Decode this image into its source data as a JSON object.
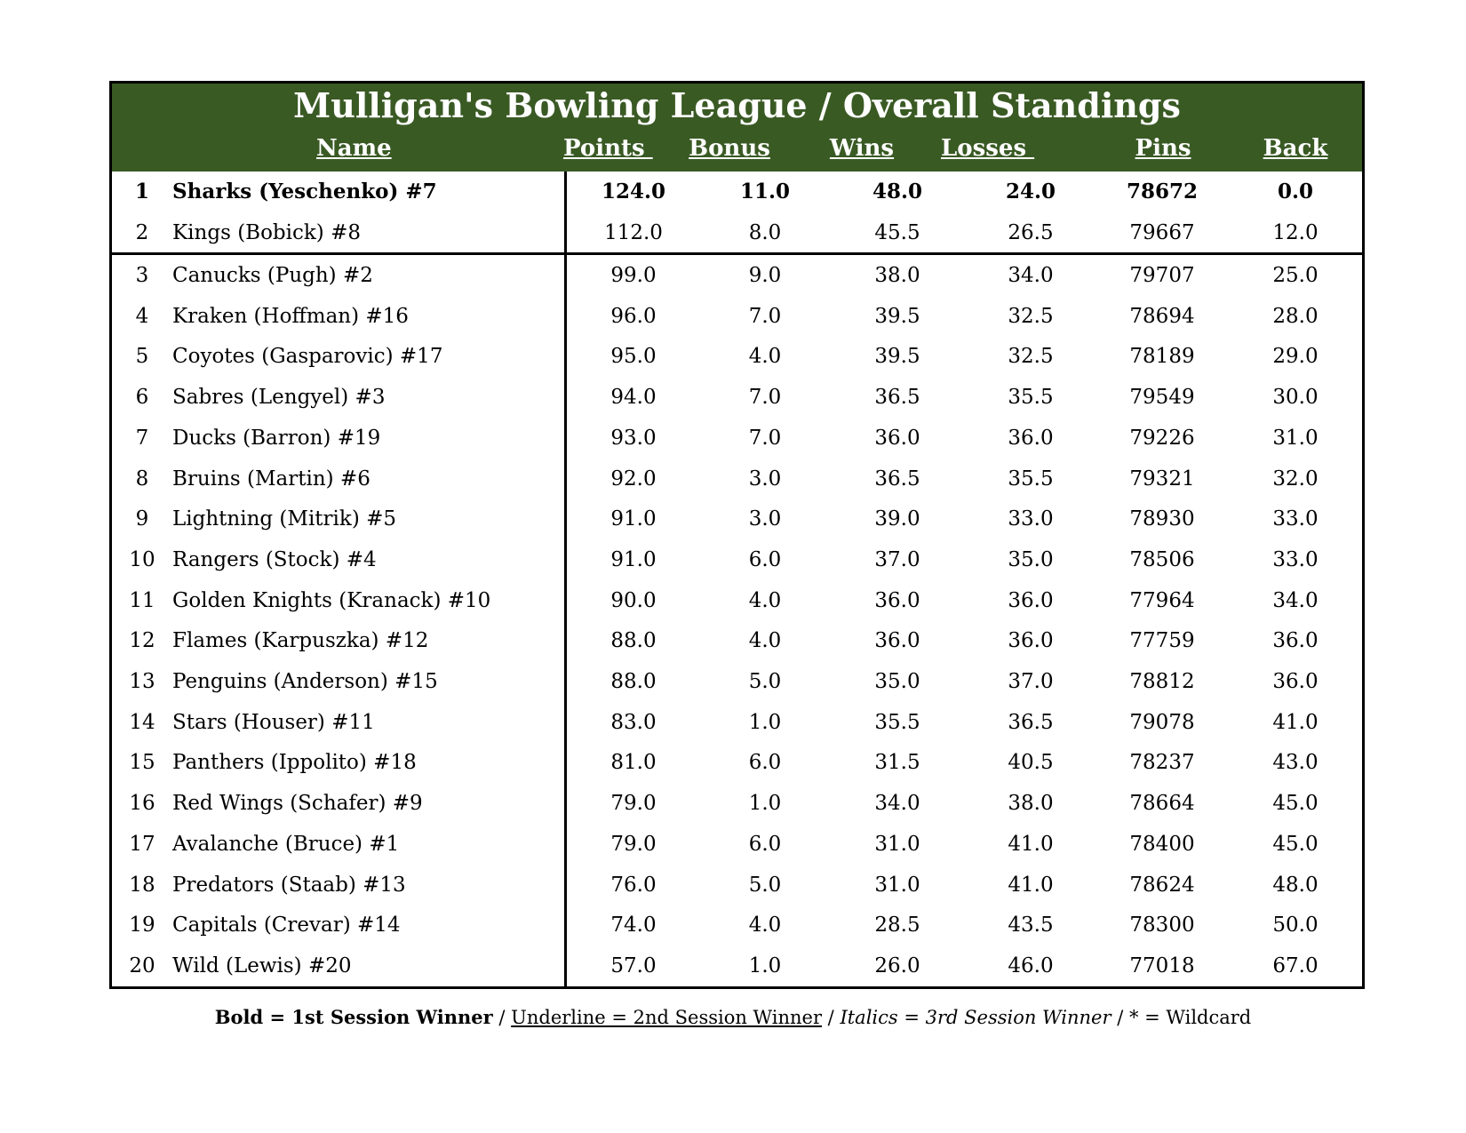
{
  "title": "Mulligan's Bowling League / Overall Standings",
  "colors": {
    "header_bg": "#3a5a24",
    "header_text": "#ffffff"
  },
  "headers": {
    "name": "Name",
    "points": "Points ",
    "bonus": "Bonus",
    "wins": "Wins",
    "losses": "Losses ",
    "pins": "Pins",
    "back": "Back"
  },
  "rows": [
    {
      "rank": "1",
      "name": "Sharks (Yeschenko) #7",
      "points": "124.0",
      "bonus": "11.0",
      "wins": "48.0",
      "losses": "24.0",
      "pins": "78672",
      "back": "0.0",
      "bold": true
    },
    {
      "rank": "2",
      "name": "Kings (Bobick) #8",
      "points": "112.0",
      "bonus": "8.0",
      "wins": "45.5",
      "losses": "26.5",
      "pins": "79667",
      "back": "12.0"
    },
    {
      "rank": "3",
      "name": "Canucks (Pugh) #2",
      "points": "99.0",
      "bonus": "9.0",
      "wins": "38.0",
      "losses": "34.0",
      "pins": "79707",
      "back": "25.0"
    },
    {
      "rank": "4",
      "name": "Kraken (Hoffman) #16",
      "points": "96.0",
      "bonus": "7.0",
      "wins": "39.5",
      "losses": "32.5",
      "pins": "78694",
      "back": "28.0"
    },
    {
      "rank": "5",
      "name": "Coyotes (Gasparovic) #17",
      "points": "95.0",
      "bonus": "4.0",
      "wins": "39.5",
      "losses": "32.5",
      "pins": "78189",
      "back": "29.0"
    },
    {
      "rank": "6",
      "name": "Sabres (Lengyel) #3",
      "points": "94.0",
      "bonus": "7.0",
      "wins": "36.5",
      "losses": "35.5",
      "pins": "79549",
      "back": "30.0"
    },
    {
      "rank": "7",
      "name": "Ducks (Barron) #19",
      "points": "93.0",
      "bonus": "7.0",
      "wins": "36.0",
      "losses": "36.0",
      "pins": "79226",
      "back": "31.0"
    },
    {
      "rank": "8",
      "name": "Bruins (Martin) #6",
      "points": "92.0",
      "bonus": "3.0",
      "wins": "36.5",
      "losses": "35.5",
      "pins": "79321",
      "back": "32.0"
    },
    {
      "rank": "9",
      "name": "Lightning (Mitrik) #5",
      "points": "91.0",
      "bonus": "3.0",
      "wins": "39.0",
      "losses": "33.0",
      "pins": "78930",
      "back": "33.0"
    },
    {
      "rank": "10",
      "name": "Rangers (Stock) #4",
      "points": "91.0",
      "bonus": "6.0",
      "wins": "37.0",
      "losses": "35.0",
      "pins": "78506",
      "back": "33.0"
    },
    {
      "rank": "11",
      "name": "Golden Knights (Kranack) #10",
      "points": "90.0",
      "bonus": "4.0",
      "wins": "36.0",
      "losses": "36.0",
      "pins": "77964",
      "back": "34.0"
    },
    {
      "rank": "12",
      "name": "Flames (Karpuszka) #12",
      "points": "88.0",
      "bonus": "4.0",
      "wins": "36.0",
      "losses": "36.0",
      "pins": "77759",
      "back": "36.0"
    },
    {
      "rank": "13",
      "name": "Penguins (Anderson) #15",
      "points": "88.0",
      "bonus": "5.0",
      "wins": "35.0",
      "losses": "37.0",
      "pins": "78812",
      "back": "36.0"
    },
    {
      "rank": "14",
      "name": "Stars (Houser) #11",
      "points": "83.0",
      "bonus": "1.0",
      "wins": "35.5",
      "losses": "36.5",
      "pins": "79078",
      "back": "41.0"
    },
    {
      "rank": "15",
      "name": "Panthers (Ippolito) #18",
      "points": "81.0",
      "bonus": "6.0",
      "wins": "31.5",
      "losses": "40.5",
      "pins": "78237",
      "back": "43.0"
    },
    {
      "rank": "16",
      "name": "Red Wings (Schafer) #9",
      "points": "79.0",
      "bonus": "1.0",
      "wins": "34.0",
      "losses": "38.0",
      "pins": "78664",
      "back": "45.0"
    },
    {
      "rank": "17",
      "name": "Avalanche (Bruce) #1",
      "points": "79.0",
      "bonus": "6.0",
      "wins": "31.0",
      "losses": "41.0",
      "pins": "78400",
      "back": "45.0"
    },
    {
      "rank": "18",
      "name": "Predators (Staab) #13",
      "points": "76.0",
      "bonus": "5.0",
      "wins": "31.0",
      "losses": "41.0",
      "pins": "78624",
      "back": "48.0"
    },
    {
      "rank": "19",
      "name": "Capitals (Crevar) #14",
      "points": "74.0",
      "bonus": "4.0",
      "wins": "28.5",
      "losses": "43.5",
      "pins": "78300",
      "back": "50.0"
    },
    {
      "rank": "20",
      "name": "Wild (Lewis) #20",
      "points": "57.0",
      "bonus": "1.0",
      "wins": "26.0",
      "losses": "46.0",
      "pins": "77018",
      "back": "67.0"
    }
  ],
  "legend": {
    "bold": "Bold = 1st Session Winner",
    "sep1": " / ",
    "underline": "Underline = 2nd Session Winner",
    "sep2": " / ",
    "italics": "Italics = 3rd Session Winner",
    "sep3": " / ",
    "wildcard": "* = Wildcard"
  }
}
